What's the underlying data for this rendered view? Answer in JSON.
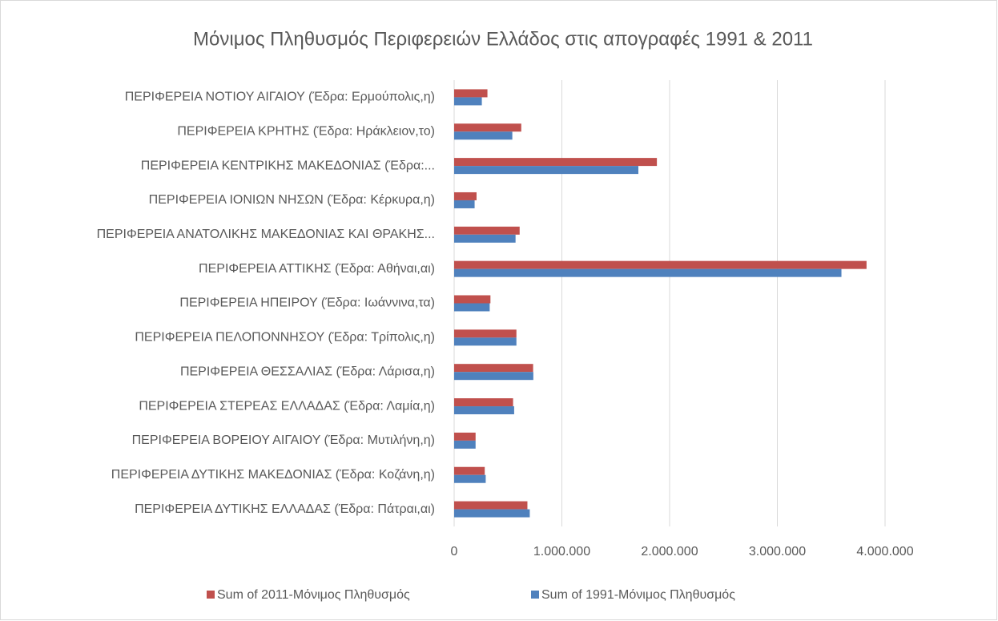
{
  "chart_data": {
    "type": "hbar",
    "title": "Μόνιμος Πληθυσμός Περιφερειών Ελλάδος στις απογραφές 1991 & 2011",
    "categories": [
      "ΠΕΡΙΦΕΡΕΙΑ ΝΟΤΙΟΥ ΑΙΓΑΙΟΥ (Έδρα: Ερμούπολις,η)",
      "ΠΕΡΙΦΕΡΕΙΑ ΚΡΗΤΗΣ (Έδρα: Ηράκλειον,το)",
      "ΠΕΡΙΦΕΡΕΙΑ ΚΕΝΤΡΙΚΗΣ ΜΑΚΕΔΟΝΙΑΣ (Έδρα:...",
      "ΠΕΡΙΦΕΡΕΙΑ ΙΟΝΙΩΝ ΝΗΣΩΝ (Έδρα: Κέρκυρα,η)",
      "ΠΕΡΙΦΕΡΕΙΑ ΑΝΑΤΟΛΙΚΗΣ ΜΑΚΕΔΟΝΙΑΣ ΚΑΙ ΘΡΑΚΗΣ...",
      "ΠΕΡΙΦΕΡΕΙΑ ΑΤΤΙΚΗΣ (Έδρα: Αθήναι,αι)",
      "ΠΕΡΙΦΕΡΕΙΑ ΗΠΕΙΡΟΥ (Έδρα: Ιωάννινα,τα)",
      "ΠΕΡΙΦΕΡΕΙΑ ΠΕΛΟΠΟΝΝΗΣΟΥ (Έδρα: Τρίπολις,η)",
      "ΠΕΡΙΦΕΡΕΙΑ ΘΕΣΣΑΛΙΑΣ (Έδρα: Λάρισα,η)",
      "ΠΕΡΙΦΕΡΕΙΑ ΣΤΕΡΕΑΣ ΕΛΛΑΔΑΣ (Έδρα: Λαμία,η)",
      "ΠΕΡΙΦΕΡΕΙΑ ΒΟΡΕΙΟΥ ΑΙΓΑΙΟΥ (Έδρα: Μυτιλήνη,η)",
      "ΠΕΡΙΦΕΡΕΙΑ ΔΥΤΙΚΗΣ ΜΑΚΕΔΟΝΙΑΣ (Έδρα: Κοζάνη,η)",
      "ΠΕΡΙΦΕΡΕΙΑ ΔΥΤΙΚΗΣ ΕΛΛΑΔΑΣ (Έδρα: Πάτραι,αι)"
    ],
    "series": [
      {
        "name": "Sum of 2011-Μόνιμος Πληθυσμός",
        "color": "#c0504d",
        "values": [
          309000,
          623000,
          1882000,
          208000,
          608000,
          3828000,
          337000,
          578000,
          733000,
          547000,
          199000,
          284000,
          680000
        ]
      },
      {
        "name": "Sum of 1991-Μόνιμος Πληθυσμός",
        "color": "#4f81bd",
        "values": [
          257000,
          540000,
          1710000,
          190000,
          570000,
          3595000,
          330000,
          578000,
          735000,
          557000,
          199000,
          293000,
          702000
        ]
      }
    ],
    "xlim": [
      0,
      4000000
    ],
    "xticks": [
      0,
      {
        "value": 1000000,
        "label": "1.000.000"
      },
      {
        "value": 2000000,
        "label": "2.000.000"
      },
      {
        "value": 3000000,
        "label": "3.000.000"
      },
      {
        "value": 4000000,
        "label": "4.000.000"
      }
    ],
    "grid": true,
    "legend": "bottom"
  }
}
